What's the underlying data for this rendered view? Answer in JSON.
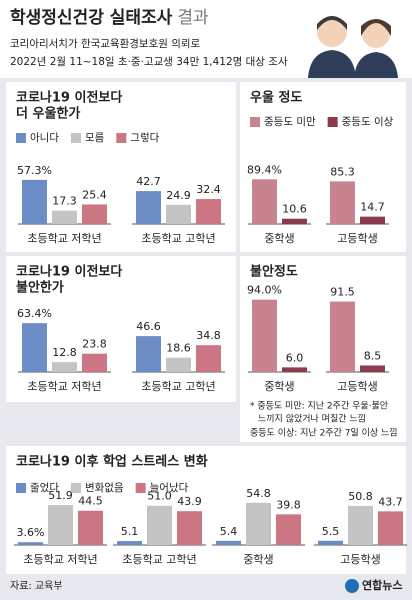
{
  "header": {
    "title": "학생정신건강 실태조사",
    "title_suffix": "결과",
    "subtitle": [
      "코리아리서치가 한국교육환경보호원 의뢰로",
      "2022년 2월 11~18일 초·중·고교생 34만 1,412명 대상 조사"
    ]
  },
  "chart_data": [
    {
      "type": "bar",
      "title": [
        "코로나19 이전보다",
        "더 우울한가"
      ],
      "categories": [
        "초등학교 저학년",
        "초등학교 고학년"
      ],
      "series": [
        {
          "name": "아니다",
          "color": "#6b8cc4",
          "values": [
            57.3,
            42.7
          ],
          "value_labels": [
            "57.3%",
            "42.7"
          ]
        },
        {
          "name": "모름",
          "color": "#c4c4c4",
          "values": [
            17.3,
            24.9
          ],
          "value_labels": [
            "17.3",
            "24.9"
          ]
        },
        {
          "name": "그렇다",
          "color": "#cc7583",
          "values": [
            25.4,
            32.4
          ],
          "value_labels": [
            "25.4",
            "32.4"
          ]
        }
      ]
    },
    {
      "type": "bar",
      "title": [
        "우울 정도"
      ],
      "categories": [
        "중학생",
        "고등학생"
      ],
      "series": [
        {
          "name": "중등도 미만",
          "color": "#c8848e",
          "values": [
            89.4,
            85.3
          ],
          "value_labels": [
            "89.4%",
            "85.3"
          ]
        },
        {
          "name": "중등도 이상",
          "color": "#8a3b4c",
          "values": [
            10.6,
            14.7
          ],
          "value_labels": [
            "10.6",
            "14.7"
          ]
        }
      ]
    },
    {
      "type": "bar",
      "title": [
        "코로나19 이전보다",
        "불안한가"
      ],
      "categories": [
        "초등학교 저학년",
        "초등학교 고학년"
      ],
      "series": [
        {
          "color": "#6b8cc4",
          "values": [
            63.4,
            46.6
          ],
          "value_labels": [
            "63.4%",
            "46.6"
          ]
        },
        {
          "color": "#c4c4c4",
          "values": [
            12.8,
            18.6
          ],
          "value_labels": [
            "12.8",
            "18.6"
          ]
        },
        {
          "color": "#cc7583",
          "values": [
            23.8,
            34.8
          ],
          "value_labels": [
            "23.8",
            "34.8"
          ]
        }
      ]
    },
    {
      "type": "bar",
      "title": [
        "불안정도"
      ],
      "categories": [
        "중학생",
        "고등학생"
      ],
      "series": [
        {
          "color": "#c8848e",
          "values": [
            94.0,
            91.5
          ],
          "value_labels": [
            "94.0%",
            "91.5"
          ]
        },
        {
          "color": "#8a3b4c",
          "values": [
            6.0,
            8.5
          ],
          "value_labels": [
            "6.0",
            "8.5"
          ]
        }
      ]
    },
    {
      "type": "bar",
      "title": [
        "코로나19 이후 학업 스트레스 변화"
      ],
      "categories": [
        "초등학교 저학년",
        "초등학교 고학년",
        "중학생",
        "고등학생"
      ],
      "series": [
        {
          "name": "줄었다",
          "color": "#6b8cc4",
          "values": [
            3.6,
            5.1,
            5.4,
            5.5
          ],
          "value_labels": [
            "3.6%",
            "5.1",
            "5.4",
            "5.5"
          ]
        },
        {
          "name": "변화없음",
          "color": "#c4c4c4",
          "values": [
            51.9,
            51.0,
            54.8,
            50.8
          ],
          "value_labels": [
            "51.9",
            "51.0",
            "54.8",
            "50.8"
          ]
        },
        {
          "name": "늘어났다",
          "color": "#cc7583",
          "values": [
            44.5,
            43.9,
            39.8,
            43.7
          ],
          "value_labels": [
            "44.5",
            "43.9",
            "39.8",
            "43.7"
          ]
        }
      ]
    }
  ],
  "notes": [
    "* 중등도 미만: 지난 2주간 우울·불안",
    "느끼지 않았거나 며칠간 느낌",
    "중등도 이상: 지난 2주간 7일 이상 느낌"
  ],
  "footer": {
    "source": "자료: 교육부",
    "logo": "연합뉴스"
  }
}
